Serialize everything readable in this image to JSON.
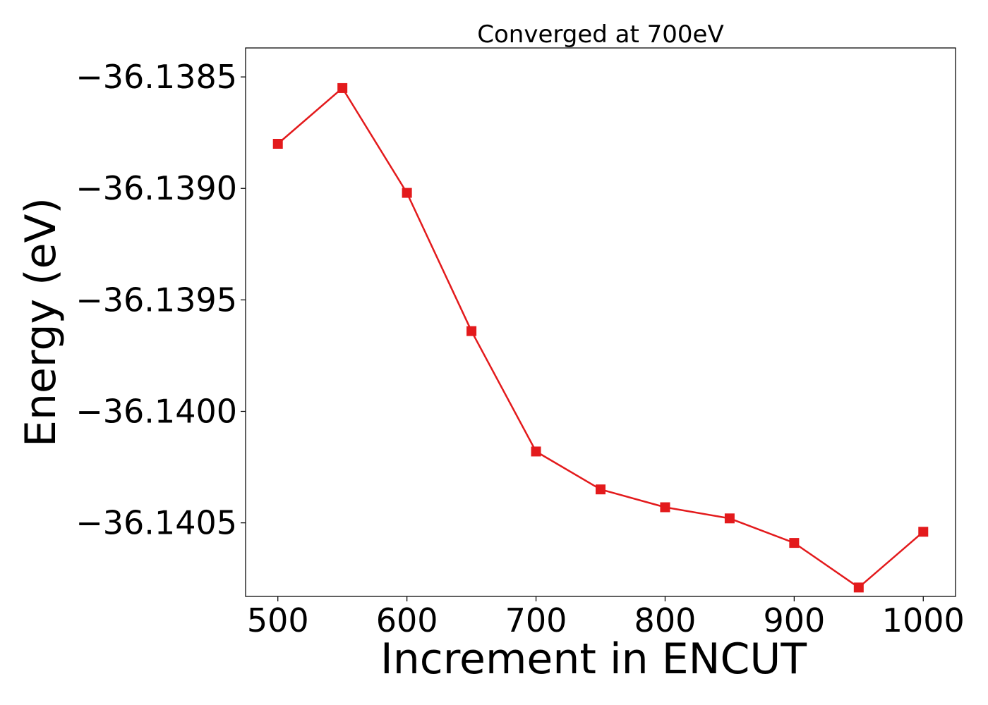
{
  "chart_data": {
    "type": "line",
    "title": "Converged at 700eV",
    "xlabel": "Increment in ENCUT",
    "ylabel": "Energy (eV)",
    "xlim": [
      475,
      1025
    ],
    "ylim": [
      -36.14083,
      -36.13837
    ],
    "grid": false,
    "legend": "none",
    "x_ticks": [
      500,
      600,
      700,
      800,
      900,
      1000
    ],
    "x_tick_labels": [
      "500",
      "600",
      "700",
      "800",
      "900",
      "1000"
    ],
    "y_ticks": [
      -36.1385,
      -36.139,
      -36.1395,
      -36.14,
      -36.1405
    ],
    "y_tick_labels": [
      "−36.1385",
      "−36.1390",
      "−36.1395",
      "−36.1400",
      "−36.1405"
    ],
    "series": [
      {
        "color": "#e31a1c",
        "marker": "square",
        "x": [
          500,
          550,
          600,
          650,
          700,
          750,
          800,
          850,
          900,
          950,
          1000
        ],
        "y": [
          -36.1388,
          -36.13855,
          -36.13902,
          -36.13964,
          -36.14018,
          -36.14035,
          -36.14043,
          -36.14048,
          -36.14059,
          -36.14079,
          -36.14054
        ]
      }
    ]
  }
}
